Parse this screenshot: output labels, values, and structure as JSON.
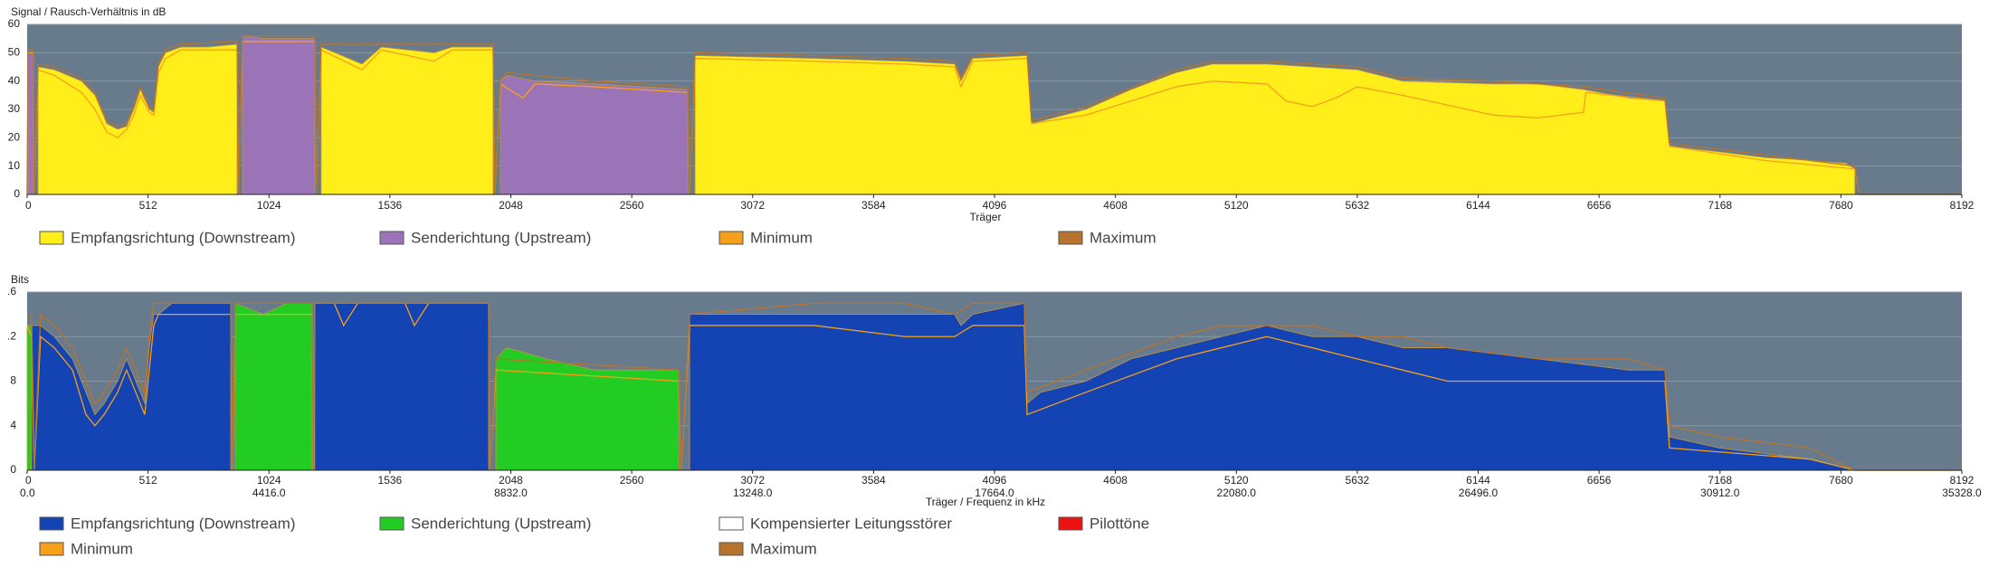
{
  "chart_data": [
    {
      "type": "area",
      "title": "Signal / Rausch-Verhältnis in dB",
      "x_label": "Träger",
      "xlim": [
        0,
        8192
      ],
      "xticks": [
        0,
        512,
        1024,
        1536,
        2048,
        2560,
        3072,
        3584,
        4096,
        4608,
        5120,
        5632,
        6144,
        6656,
        7168,
        7680,
        8192
      ],
      "ylim": [
        0,
        60
      ],
      "yticks": [
        0,
        10,
        20,
        30,
        40,
        50,
        60
      ],
      "grid": true,
      "series": [
        {
          "name": "Empfangsrichtung (Downstream)",
          "color": "#ffee1a",
          "type": "area",
          "x": [
            46,
            115,
            230,
            287,
            337,
            383,
            421,
            452,
            479,
            517,
            536,
            556,
            586,
            651,
            766,
            889,
            1000,
            1245,
            1418,
            1500,
            1724,
            1800,
            1973,
            2400,
            2828,
            3333,
            3716,
            3927,
            3954,
            4004,
            4234,
            4253,
            4483,
            4674,
            4866,
            5019,
            5249,
            5441,
            5632,
            5824,
            6207,
            6398,
            6590,
            6782,
            6935,
            6954,
            7165,
            7356,
            7548,
            7701,
            7739
          ],
          "values": [
            45,
            44,
            40,
            35,
            25,
            23,
            24,
            30,
            37,
            30,
            29,
            45,
            50,
            52,
            52,
            53,
            null,
            52,
            46,
            52,
            50,
            52,
            52,
            null,
            49,
            48,
            47,
            46,
            40,
            48,
            49,
            25,
            30,
            37,
            43,
            46,
            46,
            45,
            44,
            40,
            39,
            39,
            37,
            34,
            33,
            17,
            15,
            13,
            12,
            11,
            9
          ]
        },
        {
          "name": "Senderichtung (Upstream)",
          "color": "#9b74b8",
          "type": "area",
          "x": [
            4,
            27,
            500,
            912,
            1000,
            1218,
            1600,
            2004,
            2030,
            2150,
            2400,
            2600,
            2797
          ],
          "values": [
            50,
            50,
            null,
            56,
            55,
            55,
            null,
            40,
            42,
            40,
            39,
            38,
            37
          ]
        },
        {
          "name": "Minimum",
          "color": "#f5a01a",
          "type": "line",
          "x": [
            0,
            4,
            27,
            30,
            46,
            115,
            230,
            287,
            337,
            383,
            421,
            452,
            479,
            517,
            536,
            556,
            586,
            651,
            889,
            895,
            912,
            1218,
            1225,
            1245,
            1418,
            1500,
            1724,
            1800,
            1973,
            1980,
            2004,
            2100,
            2150,
            2400,
            2797,
            2805,
            2828,
            3333,
            3716,
            3927,
            3954,
            4004,
            4234,
            4253,
            4483,
            4866,
            5019,
            5249,
            5330,
            5441,
            5540,
            5632,
            5824,
            6207,
            6398,
            6590,
            6600,
            6935,
            6954,
            7356,
            7739,
            7760,
            8192
          ],
          "values": [
            0,
            50,
            50,
            0,
            44,
            42,
            36,
            30,
            22,
            20,
            23,
            28,
            35,
            29,
            28,
            43,
            48,
            51,
            51,
            0,
            54,
            54,
            0,
            51,
            44,
            51,
            47,
            51,
            51,
            0,
            39,
            34,
            39,
            38,
            36,
            0,
            48,
            47,
            46,
            45,
            38,
            47,
            48,
            25,
            28,
            38,
            40,
            39,
            33,
            31,
            34,
            38,
            35,
            28,
            27,
            29,
            36,
            33,
            17,
            12,
            9,
            0,
            0
          ]
        },
        {
          "name": "Maximum",
          "color": "#b8732e",
          "type": "line",
          "x": [
            0,
            4,
            27,
            30,
            46,
            115,
            230,
            287,
            337,
            383,
            421,
            452,
            479,
            517,
            536,
            556,
            586,
            651,
            889,
            895,
            912,
            1218,
            1225,
            1245,
            1973,
            1980,
            2004,
            2030,
            2400,
            2797,
            2805,
            2828,
            3333,
            3716,
            3927,
            3954,
            4004,
            4234,
            4253,
            4483,
            4866,
            5019,
            5249,
            5632,
            5824,
            6207,
            6590,
            6935,
            6954,
            7356,
            7739,
            7760,
            8192
          ],
          "values": [
            0,
            51,
            51,
            0,
            46,
            45,
            41,
            36,
            26,
            24,
            25,
            31,
            38,
            31,
            30,
            46,
            51,
            53,
            54,
            0,
            56,
            56,
            0,
            53,
            53,
            0,
            41,
            43,
            40,
            38,
            0,
            50,
            49,
            48,
            47,
            41,
            49,
            50,
            26,
            31,
            44,
            47,
            47,
            45,
            41,
            40,
            38,
            34,
            18,
            14,
            10,
            0,
            0
          ]
        }
      ]
    },
    {
      "type": "area",
      "title": "Bits",
      "x_label": "Träger / Frequenz in kHz",
      "xlim": [
        0,
        8192
      ],
      "xticks": [
        0,
        512,
        1024,
        1536,
        2048,
        2560,
        3072,
        3584,
        4096,
        4608,
        5120,
        5632,
        6144,
        6656,
        7168,
        7680,
        8192
      ],
      "x2lim": [
        0,
        35328
      ],
      "x2ticks": [
        {
          "value": 0,
          "label": "0.0"
        },
        {
          "value": 4416,
          "label": "4416.0"
        },
        {
          "value": 8832,
          "label": "8832.0"
        },
        {
          "value": 13248,
          "label": "13248.0"
        },
        {
          "value": 17664,
          "label": "17664.0"
        },
        {
          "value": 22080,
          "label": "22080.0"
        },
        {
          "value": 26496,
          "label": "26496.0"
        },
        {
          "value": 30912,
          "label": "30912.0"
        },
        {
          "value": 35328,
          "label": "35328.0"
        }
      ],
      "ylim": [
        0,
        16
      ],
      "yticks": [
        0,
        4,
        8,
        {
          "value": 12,
          "label": ".2"
        },
        {
          "value": 16,
          "label": ".6"
        }
      ],
      "grid": true,
      "series": [
        {
          "name": "Senderichtung (Upstream)",
          "color": "#22cc22",
          "type": "area",
          "x": [
            0,
            19,
            500,
            881,
            1000,
            1100,
            1207,
            1600,
            1985,
            2030,
            2200,
            2400,
            2600,
            2759
          ],
          "values": [
            13,
            13,
            null,
            15,
            14,
            15,
            15,
            null,
            10,
            11,
            10,
            9,
            9,
            9
          ]
        },
        {
          "name": "Empfangsrichtung (Downstream)",
          "color": "#1443b4",
          "type": "area",
          "x": [
            19,
            57,
            115,
            192,
            249,
            287,
            326,
            383,
            421,
            460,
            498,
            517,
            536,
            556,
            613,
            862,
            1050,
            1218,
            1954,
            2400,
            2805,
            3100,
            3716,
            3927,
            3954,
            4004,
            4222,
            4234,
            4291,
            4483,
            4674,
            4866,
            5057,
            5249,
            5441,
            5632,
            5824,
            6015,
            6398,
            6782,
            6935,
            6954,
            7165,
            7548,
            7739
          ],
          "values": [
            13,
            13,
            12,
            10,
            7,
            5,
            6,
            8,
            10,
            8,
            6,
            11,
            14,
            14,
            15,
            15,
            null,
            15,
            15,
            null,
            14,
            14,
            14,
            14,
            13,
            14,
            15,
            6,
            7,
            8,
            10,
            11,
            12,
            13,
            12,
            12,
            11,
            11,
            10,
            9,
            9,
            3,
            2,
            1,
            0
          ]
        },
        {
          "name": "Kompensierter Leitungsstörer",
          "color": "#ffffff",
          "type": "area",
          "x": [],
          "values": []
        },
        {
          "name": "Pilottöne",
          "color": "#ee1111",
          "type": "area",
          "x": [],
          "values": []
        },
        {
          "name": "Minimum",
          "color": "#f5a01a",
          "type": "line",
          "x": [
            0,
            19,
            30,
            57,
            115,
            192,
            249,
            287,
            326,
            383,
            421,
            460,
            498,
            517,
            536,
            556,
            862,
            870,
            881,
            1207,
            1212,
            1218,
            1300,
            1340,
            1400,
            1600,
            1640,
            1700,
            1954,
            1960,
            1985,
            2759,
            2770,
            2805,
            3333,
            3716,
            3927,
            4004,
            4222,
            4234,
            4483,
            4866,
            5057,
            5249,
            5441,
            5632,
            5824,
            6015,
            6398,
            6782,
            6935,
            6954,
            7548,
            7739,
            8192
          ],
          "values": [
            13,
            12,
            0,
            12,
            11,
            9,
            5,
            4,
            5,
            7,
            9,
            7,
            5,
            9,
            13,
            14,
            14,
            0,
            14,
            14,
            0,
            15,
            15,
            13,
            15,
            15,
            13,
            15,
            15,
            0,
            9,
            8,
            0,
            13,
            13,
            12,
            12,
            13,
            13,
            5,
            7,
            10,
            11,
            12,
            11,
            10,
            9,
            8,
            8,
            8,
            8,
            2,
            1,
            0,
            0
          ]
        },
        {
          "name": "Maximum",
          "color": "#b8732e",
          "type": "line",
          "x": [
            0,
            19,
            30,
            57,
            115,
            192,
            249,
            287,
            326,
            383,
            421,
            460,
            498,
            517,
            536,
            862,
            870,
            881,
            1207,
            1212,
            1218,
            1954,
            1960,
            1985,
            2759,
            2770,
            2805,
            3333,
            3716,
            3927,
            4004,
            4222,
            4234,
            4483,
            4866,
            5057,
            5249,
            5441,
            5632,
            5824,
            6015,
            6398,
            6782,
            6935,
            6954,
            7165,
            7548,
            7739,
            8192
          ],
          "values": [
            14,
            14,
            0,
            14,
            13,
            11,
            8,
            6,
            7,
            9,
            11,
            9,
            7,
            12,
            15,
            15,
            0,
            15,
            15,
            0,
            15,
            15,
            0,
            10,
            9,
            0,
            14,
            15,
            15,
            14,
            15,
            15,
            7,
            9,
            12,
            13,
            13,
            13,
            12,
            12,
            11,
            10,
            10,
            9,
            4,
            3,
            2,
            0,
            0
          ]
        }
      ]
    }
  ]
}
